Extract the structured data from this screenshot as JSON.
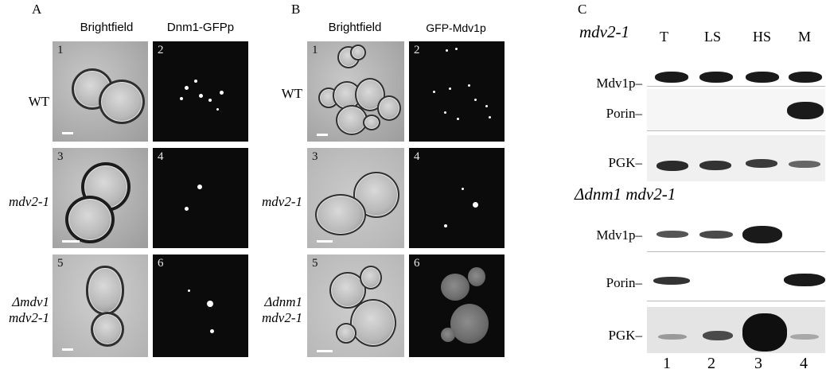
{
  "panel_A": {
    "letter": "A",
    "columns": [
      "Brightfield",
      "Dnm1-GFPp"
    ],
    "rows": [
      {
        "label_lines": [
          "WT"
        ],
        "italic": false,
        "tiles": [
          "1",
          "2"
        ]
      },
      {
        "label_lines": [
          "mdv2-1"
        ],
        "italic": true,
        "tiles": [
          "3",
          "4"
        ]
      },
      {
        "label_lines": [
          "Δmdv1",
          "mdv2-1"
        ],
        "italic": true,
        "tiles": [
          "5",
          "6"
        ]
      }
    ]
  },
  "panel_B": {
    "letter": "B",
    "columns": [
      "Brightfield",
      "GFP-Mdv1p"
    ],
    "rows": [
      {
        "label_lines": [
          "WT"
        ],
        "italic": false,
        "tiles": [
          "1",
          "2"
        ]
      },
      {
        "label_lines": [
          "mdv2-1"
        ],
        "italic": true,
        "tiles": [
          "3",
          "4"
        ]
      },
      {
        "label_lines": [
          "Δdnm1",
          "mdv2-1"
        ],
        "italic": true,
        "tiles": [
          "5",
          "6"
        ]
      }
    ]
  },
  "panel_C": {
    "letter": "C",
    "group1_title": "mdv2-1",
    "group2_title": "Δdnm1 mdv2-1",
    "lanes": [
      "T",
      "LS",
      "HS",
      "M"
    ],
    "lane_numbers": [
      "1",
      "2",
      "3",
      "4"
    ],
    "blot_labels": [
      "Mdv1p–",
      "Porin–",
      "PGK–"
    ],
    "band_intensity_group1": {
      "Mdv1p": [
        1.0,
        1.0,
        1.0,
        1.0
      ],
      "Porin": [
        0.0,
        0.0,
        0.0,
        1.0
      ],
      "PGK": [
        0.9,
        0.8,
        0.7,
        0.5
      ]
    },
    "band_intensity_group2": {
      "Mdv1p": [
        0.4,
        0.45,
        1.0,
        0.0
      ],
      "Porin": [
        0.7,
        0.0,
        0.0,
        0.9
      ],
      "PGK": [
        0.15,
        0.6,
        1.0,
        0.15
      ]
    }
  }
}
